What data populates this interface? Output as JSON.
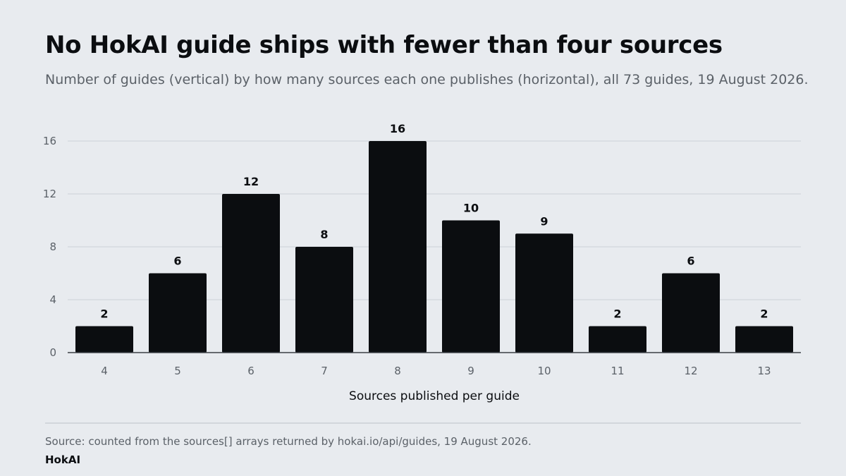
{
  "header": {
    "title": "No HokAI guide ships with fewer than four sources",
    "subtitle": "Number of guides (vertical) by how many sources each one publishes (horizontal), all 73 guides, 19 August 2026."
  },
  "footer": {
    "source": "Source: counted from the sources[] arrays returned by hokai.io/api/guides, 19 August 2026.",
    "brand": "HokAI"
  },
  "colors": {
    "bar": "#0b0d10",
    "grid": "#d6dadf",
    "axis": "#3a3f45",
    "background": "#e8ebef"
  },
  "chart_data": {
    "type": "bar",
    "categories": [
      "4",
      "5",
      "6",
      "7",
      "8",
      "9",
      "10",
      "11",
      "12",
      "13"
    ],
    "values": [
      2,
      6,
      12,
      8,
      16,
      10,
      9,
      2,
      6,
      2
    ],
    "xlabel": "Sources published per guide",
    "ylabel": "",
    "ylim": [
      0,
      16
    ],
    "yticks": [
      0,
      4,
      8,
      12,
      16
    ],
    "grid": true,
    "data_labels": true
  }
}
